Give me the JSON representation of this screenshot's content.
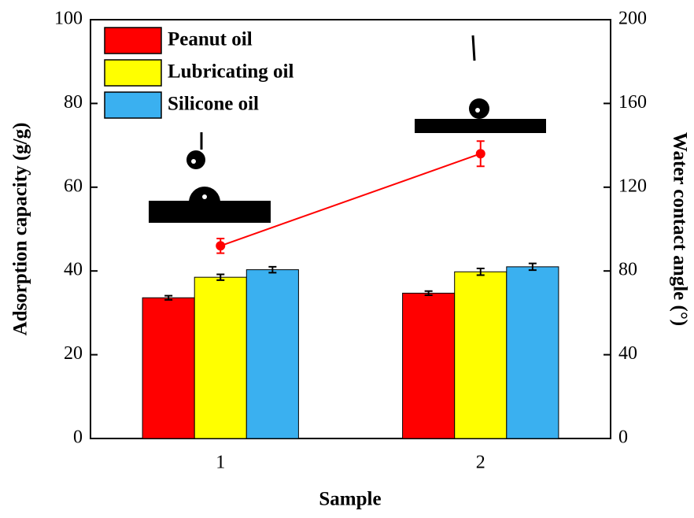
{
  "chart_data": {
    "type": "bar",
    "x_label": "Sample",
    "y_label": "Adsorption capacity (g/g)",
    "y2_label": "Water contact angle (°)",
    "categories": [
      "1",
      "2"
    ],
    "series": [
      {
        "name": "Peanut oil",
        "color": "#ff0000",
        "values": [
          33.6,
          34.7
        ],
        "errors": [
          0.5,
          0.5
        ]
      },
      {
        "name": "Lubricating oil",
        "color": "#ffff00",
        "values": [
          38.5,
          39.8
        ],
        "errors": [
          0.7,
          0.8
        ]
      },
      {
        "name": "Silicone oil",
        "color": "#3ab0f0",
        "values": [
          40.3,
          41.0
        ],
        "errors": [
          0.7,
          0.8
        ]
      },
      {
        "type": "line",
        "axis": "y2",
        "color": "#ff0000",
        "values": [
          92,
          136
        ],
        "errors": [
          3.5,
          6
        ]
      }
    ],
    "ylim": [
      0,
      100
    ],
    "yticks": [
      0,
      20,
      40,
      60,
      80,
      100
    ],
    "y2lim": [
      0,
      200
    ],
    "y2ticks": [
      0,
      40,
      80,
      120,
      160,
      200
    ],
    "legend": "upper-left",
    "grid": false
  }
}
